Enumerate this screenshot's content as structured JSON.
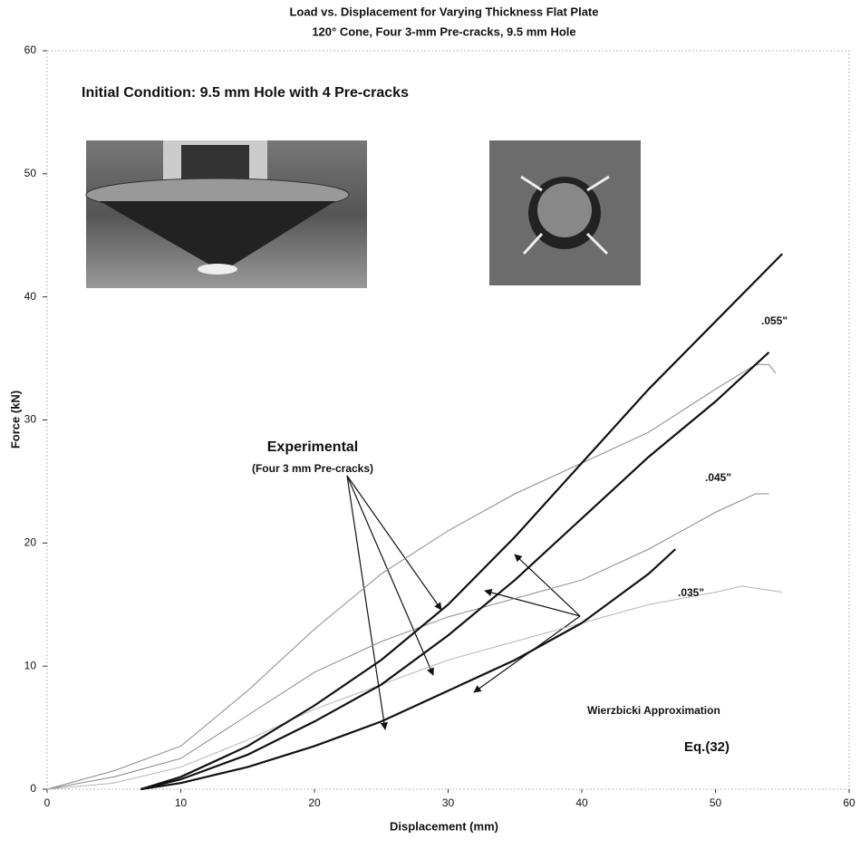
{
  "chart_data": {
    "type": "line",
    "title": "Load vs. Displacement for Varying Thickness Flat Plate",
    "subtitle": "120° Cone, Four 3-mm Pre-cracks, 9.5 mm Hole",
    "x_label": "Displacement (mm)",
    "y_label": "Force (kN)",
    "xlim": [
      0,
      60
    ],
    "ylim": [
      0,
      60
    ],
    "xticks": [
      0,
      10,
      20,
      30,
      40,
      50,
      60
    ],
    "yticks": [
      0,
      10,
      20,
      30,
      40,
      50,
      60
    ],
    "series": [
      {
        "color": "#8a8a8a",
        "line_width": 1,
        "x": [
          0,
          5,
          10,
          15,
          20,
          25,
          30,
          35,
          40,
          45,
          50,
          53,
          54,
          54.5
        ],
        "values": [
          0,
          1.5,
          3.5,
          8,
          13,
          17.5,
          21,
          24,
          26.5,
          29,
          32.5,
          34.5,
          34.5,
          33.8
        ]
      },
      {
        "color": "#8a8a8a",
        "line_width": 1,
        "x": [
          0,
          5,
          10,
          15,
          20,
          25,
          30,
          35,
          40,
          45,
          50,
          53,
          54
        ],
        "values": [
          0,
          1,
          2.5,
          6,
          9.5,
          12,
          14,
          15.5,
          17,
          19.5,
          22.5,
          24,
          24
        ]
      },
      {
        "color": "#b5b5b5",
        "line_width": 1,
        "x": [
          0,
          5,
          10,
          15,
          20,
          25,
          30,
          35,
          40,
          45,
          50,
          52,
          55
        ],
        "values": [
          0,
          0.5,
          1.8,
          4,
          6.5,
          8.5,
          10.5,
          12,
          13.5,
          15,
          16,
          16.5,
          16
        ]
      },
      {
        "color": "#111111",
        "line_width": 2.2,
        "x": [
          7,
          10,
          15,
          20,
          25,
          30,
          35,
          40,
          45,
          50,
          55
        ],
        "values": [
          0,
          1,
          3.5,
          6.8,
          10.5,
          15,
          20.5,
          26.5,
          32.5,
          38,
          43.5
        ]
      },
      {
        "color": "#111111",
        "line_width": 2.2,
        "x": [
          7,
          10,
          15,
          20,
          25,
          30,
          35,
          40,
          45,
          50,
          54
        ],
        "values": [
          0,
          0.8,
          2.8,
          5.5,
          8.5,
          12.5,
          17,
          22,
          27,
          31.5,
          35.5
        ]
      },
      {
        "color": "#111111",
        "line_width": 2.2,
        "x": [
          7,
          10,
          15,
          20,
          25,
          30,
          35,
          40,
          45,
          47
        ],
        "values": [
          0,
          0.5,
          1.8,
          3.5,
          5.5,
          8,
          10.5,
          13.5,
          17.5,
          19.5
        ]
      }
    ],
    "annotations": [
      "Initial Condition:  9.5 mm Hole with 4 Pre-cracks",
      ".055\"",
      ".045\"",
      ".035\"",
      "Experimental",
      "(Four 3 mm Pre-cracks)",
      "Wierzbicki Approximation",
      "Eq.(32)"
    ]
  }
}
